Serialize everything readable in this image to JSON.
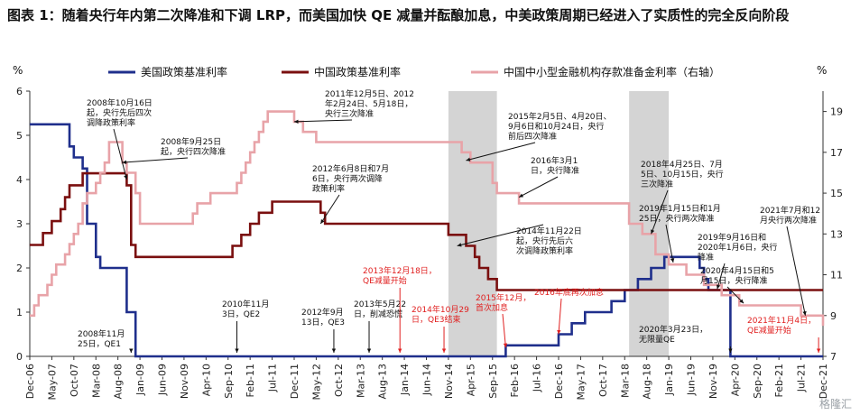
{
  "title_text": "图表 1：随着央行年内第二次降准和下调 LRP，而美国加快 QE 减量并酝酿加息，中美政策周期已经进入了实质性的完全反向阶段",
  "watermark": "格隆汇",
  "chart_data": {
    "type": "line",
    "left_unit": "%",
    "right_unit": "%",
    "y_left": {
      "min": 0,
      "max": 6,
      "ticks": [
        "0",
        "1",
        "2",
        "3",
        "4",
        "5",
        "6"
      ]
    },
    "y_right": {
      "min": 7,
      "max": 20,
      "ticks": [
        "7",
        "9",
        "11",
        "13",
        "15",
        "17",
        "19"
      ]
    },
    "x_range": [
      "2006-12",
      "2021-12"
    ],
    "x_ticks": [
      "Dec-06",
      "May-07",
      "Oct-07",
      "Mar-08",
      "Aug-08",
      "Jan-09",
      "Jun-09",
      "Nov-09",
      "Apr-10",
      "Sep-10",
      "Feb-11",
      "Jul-11",
      "Dec-11",
      "May-12",
      "Oct-12",
      "Mar-13",
      "Aug-13",
      "Jan-14",
      "Jun-14",
      "Nov-14",
      "Apr-15",
      "Sep-15",
      "Feb-16",
      "Jul-16",
      "Dec-16",
      "May-17",
      "Oct-17",
      "Mar-18",
      "Aug-18",
      "Jan-19",
      "Jun-19",
      "Nov-19",
      "Apr-20",
      "Sep-20",
      "Feb-21",
      "Jul-21",
      "Dec-21"
    ],
    "shaded_periods": [
      [
        "2014-11",
        "2015-10"
      ],
      [
        "2018-04",
        "2019-01"
      ]
    ],
    "series": [
      {
        "name": "美国政策基准利率",
        "axis": "left",
        "color": "#1f2f8c",
        "points": [
          [
            "2006-12",
            5.25
          ],
          [
            "2007-09",
            4.75
          ],
          [
            "2007-10",
            4.5
          ],
          [
            "2007-12",
            4.25
          ],
          [
            "2008-01",
            3.0
          ],
          [
            "2008-03",
            2.25
          ],
          [
            "2008-04",
            2.0
          ],
          [
            "2008-10",
            1.0
          ],
          [
            "2008-12",
            0.0
          ],
          [
            "2015-12",
            0.25
          ],
          [
            "2016-12",
            0.5
          ],
          [
            "2017-03",
            0.75
          ],
          [
            "2017-06",
            1.0
          ],
          [
            "2017-12",
            1.25
          ],
          [
            "2018-03",
            1.5
          ],
          [
            "2018-06",
            1.75
          ],
          [
            "2018-09",
            2.0
          ],
          [
            "2018-12",
            2.25
          ],
          [
            "2019-08",
            2.0
          ],
          [
            "2019-09",
            1.75
          ],
          [
            "2019-10",
            1.5
          ],
          [
            "2020-03",
            0.0
          ],
          [
            "2021-12",
            0.0
          ]
        ]
      },
      {
        "name": "中国政策基准利率",
        "axis": "left",
        "color": "#7a0f0f",
        "points": [
          [
            "2006-12",
            2.52
          ],
          [
            "2007-03",
            2.79
          ],
          [
            "2007-05",
            3.06
          ],
          [
            "2007-07",
            3.33
          ],
          [
            "2007-08",
            3.6
          ],
          [
            "2007-09",
            3.87
          ],
          [
            "2007-12",
            4.14
          ],
          [
            "2008-10",
            3.87
          ],
          [
            "2008-11",
            2.52
          ],
          [
            "2008-12",
            2.25
          ],
          [
            "2010-10",
            2.5
          ],
          [
            "2010-12",
            2.75
          ],
          [
            "2011-02",
            3.0
          ],
          [
            "2011-04",
            3.25
          ],
          [
            "2011-07",
            3.5
          ],
          [
            "2012-06",
            3.25
          ],
          [
            "2012-07",
            3.0
          ],
          [
            "2014-11",
            2.75
          ],
          [
            "2015-03",
            2.5
          ],
          [
            "2015-05",
            2.25
          ],
          [
            "2015-06",
            2.0
          ],
          [
            "2015-08",
            1.75
          ],
          [
            "2015-10",
            1.5
          ],
          [
            "2021-12",
            1.5
          ]
        ]
      },
      {
        "name": "中国中小型金融机构存款准备金利率（右轴）",
        "axis": "right",
        "color": "#e8a3a8",
        "points": [
          [
            "2006-12",
            9.0
          ],
          [
            "2007-01",
            9.5
          ],
          [
            "2007-02",
            10.0
          ],
          [
            "2007-04",
            10.5
          ],
          [
            "2007-05",
            11.0
          ],
          [
            "2007-06",
            11.5
          ],
          [
            "2007-08",
            12.0
          ],
          [
            "2007-09",
            12.5
          ],
          [
            "2007-10",
            13.0
          ],
          [
            "2007-11",
            13.5
          ],
          [
            "2007-12",
            14.5
          ],
          [
            "2008-01",
            15.0
          ],
          [
            "2008-03",
            15.5
          ],
          [
            "2008-04",
            16.0
          ],
          [
            "2008-05",
            16.5
          ],
          [
            "2008-06",
            17.5
          ],
          [
            "2008-09",
            16.5
          ],
          [
            "2008-10",
            16.0
          ],
          [
            "2008-12",
            15.0
          ],
          [
            "2009-01",
            13.5
          ],
          [
            "2010-01",
            14.0
          ],
          [
            "2010-02",
            14.5
          ],
          [
            "2010-05",
            15.0
          ],
          [
            "2010-11",
            15.5
          ],
          [
            "2010-12",
            16.0
          ],
          [
            "2011-01",
            16.5
          ],
          [
            "2011-02",
            17.0
          ],
          [
            "2011-03",
            17.5
          ],
          [
            "2011-04",
            18.0
          ],
          [
            "2011-05",
            18.5
          ],
          [
            "2011-06",
            19.0
          ],
          [
            "2011-12",
            18.5
          ],
          [
            "2012-02",
            18.0
          ],
          [
            "2012-05",
            17.5
          ],
          [
            "2015-02",
            17.0
          ],
          [
            "2015-04",
            16.5
          ],
          [
            "2015-09",
            15.5
          ],
          [
            "2015-10",
            15.0
          ],
          [
            "2016-03",
            14.5
          ],
          [
            "2018-04",
            13.5
          ],
          [
            "2018-07",
            13.0
          ],
          [
            "2018-10",
            12.0
          ],
          [
            "2019-01",
            11.5
          ],
          [
            "2019-05",
            11.0
          ],
          [
            "2019-09",
            10.5
          ],
          [
            "2020-01",
            10.0
          ],
          [
            "2020-05",
            9.5
          ],
          [
            "2021-07",
            9.0
          ],
          [
            "2021-12",
            8.5
          ]
        ]
      }
    ],
    "annotations": [
      {
        "text": [
          "2008年10月16日",
          "起，央行先后四次",
          "调降政策利率"
        ],
        "color": "#111111",
        "date": "2008-10",
        "value": 4.0,
        "axis": "left"
      },
      {
        "text": [
          "2008年9月25日",
          "起，央行四次降准"
        ],
        "color": "#111111",
        "date": "2008-09",
        "value": 16.5,
        "axis": "right"
      },
      {
        "text": [
          "2011年12月5日、2012",
          "年2月24日、5月18日，",
          "央行三次降准"
        ],
        "color": "#111111",
        "date": "2011-12",
        "value": 18.5,
        "axis": "right"
      },
      {
        "text": [
          "2012年6月8日和7月",
          "6日，央行两次调降",
          "政策利率"
        ],
        "color": "#111111",
        "date": "2012-06",
        "value": 3.0,
        "axis": "left"
      },
      {
        "text": [
          "2015年2月5日、4月20日、",
          "9月6日和10月24日，央行",
          "前后四次降准"
        ],
        "color": "#111111",
        "date": "2015-03",
        "value": 16.6,
        "axis": "right"
      },
      {
        "text": [
          "2016年3月1",
          "日，央行降准"
        ],
        "color": "#111111",
        "date": "2016-03",
        "value": 14.8,
        "axis": "right"
      },
      {
        "text": [
          "2014年11月22日",
          "起，央行先后六",
          "次调降政策利率"
        ],
        "color": "#111111",
        "date": "2015-01",
        "value": 2.5,
        "axis": "left"
      },
      {
        "text": [
          "2018年4月25日、7月",
          "5日、10月15日，央行",
          "三次降准"
        ],
        "color": "#111111",
        "date": "2018-09",
        "value": 13.0,
        "axis": "right"
      },
      {
        "text": [
          "2019年1月15日和1月",
          "25日，央行两次降准"
        ],
        "color": "#111111",
        "date": "2019-02",
        "value": 11.6,
        "axis": "right"
      },
      {
        "text": [
          "2019年9月16日和",
          "2020年1月6日，央行",
          "降准"
        ],
        "color": "#111111",
        "date": "2019-12",
        "value": 10.3,
        "axis": "right"
      },
      {
        "text": [
          "2020年4月15日和5",
          "月15日，央行降准"
        ],
        "color": "#111111",
        "date": "2020-06",
        "value": 9.6,
        "axis": "right"
      },
      {
        "text": [
          "2021年7月和12",
          "月央行两次降准"
        ],
        "color": "#111111",
        "date": "2021-08",
        "value": 9.0,
        "axis": "right"
      },
      {
        "text": [
          "2008年11月",
          "25日，QE1"
        ],
        "color": "#111111",
        "date": "2008-11",
        "value": 0.0,
        "axis": "left"
      },
      {
        "text": [
          "2010年11月",
          "3日，QE2"
        ],
        "color": "#111111",
        "date": "2010-11",
        "value": 0.0,
        "axis": "left"
      },
      {
        "text": [
          "2012年9月",
          "13日，QE3"
        ],
        "color": "#111111",
        "date": "2012-09",
        "value": 0.0,
        "axis": "left"
      },
      {
        "text": [
          "2013年5月22",
          "日，削减恐慌"
        ],
        "color": "#111111",
        "date": "2013-05",
        "value": 0.0,
        "axis": "left"
      },
      {
        "text": [
          "2013年12月18日，",
          "QE减量开始"
        ],
        "color": "#e02020",
        "date": "2013-12",
        "value": 0.0,
        "axis": "left"
      },
      {
        "text": [
          "2014年10月29",
          "日，QE3结束"
        ],
        "color": "#e02020",
        "date": "2014-10",
        "value": 0.0,
        "axis": "left"
      },
      {
        "text": [
          "2015年12月，",
          "首次加息"
        ],
        "color": "#e02020",
        "date": "2015-12",
        "value": 0.2,
        "axis": "left"
      },
      {
        "text": [
          "2016年底再次加息"
        ],
        "color": "#e02020",
        "date": "2016-12",
        "value": 0.5,
        "axis": "left"
      },
      {
        "text": [
          "2020年3月23日，",
          "无限量QE"
        ],
        "color": "#111111",
        "date": "2020-03",
        "value": 0.0,
        "axis": "left"
      },
      {
        "text": [
          "2021年11月4日，",
          "QE减量开始"
        ],
        "color": "#e02020",
        "date": "2021-11",
        "value": 0.0,
        "axis": "left"
      }
    ]
  }
}
